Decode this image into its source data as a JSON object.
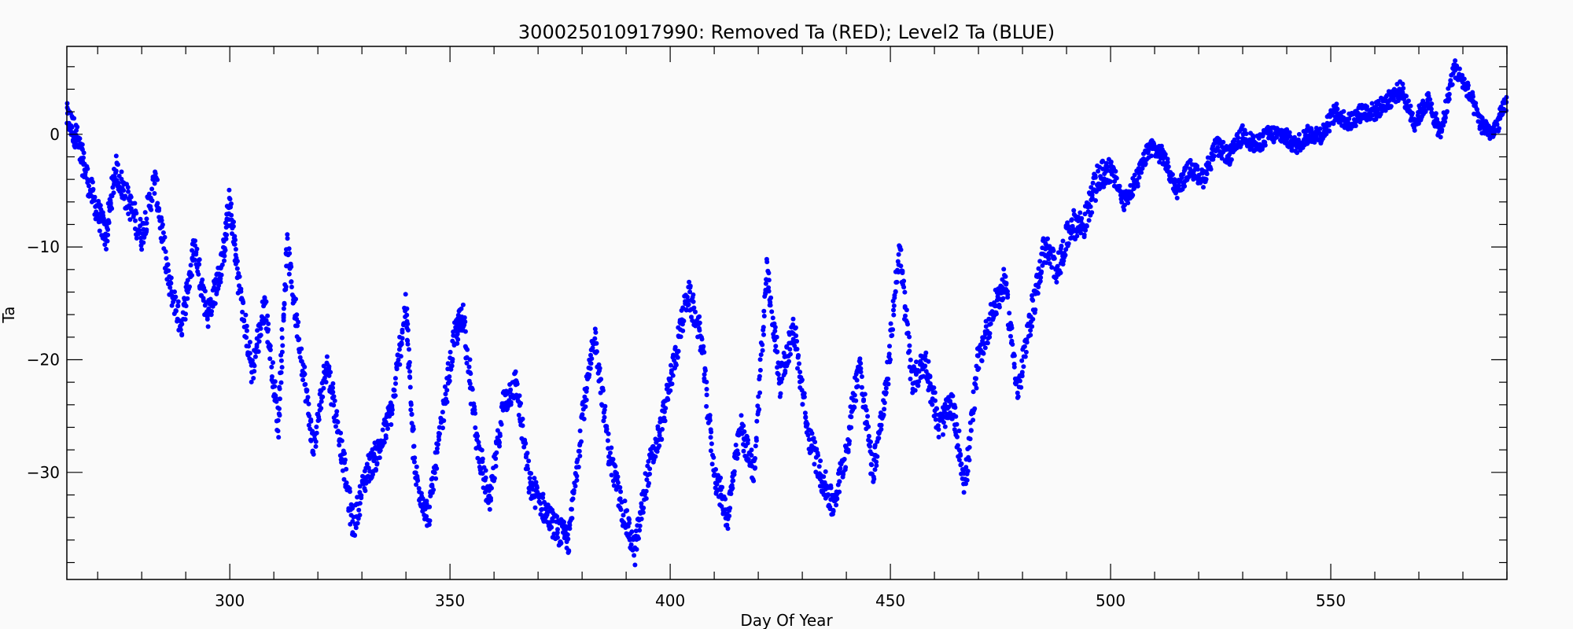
{
  "chart_data": {
    "type": "scatter",
    "title": "300025010917990: Removed Ta (RED); Level2 Ta (BLUE)",
    "xlabel": "Day Of Year",
    "ylabel": "Ta",
    "xlim": [
      263,
      590
    ],
    "ylim": [
      -39.5,
      7.8
    ],
    "x_ticks": [
      300,
      350,
      400,
      450,
      500,
      550
    ],
    "x_tick_labels": [
      "300",
      "350",
      "400",
      "450",
      "500",
      "550"
    ],
    "y_ticks": [
      0,
      -10,
      -20,
      -30
    ],
    "y_tick_labels": [
      "0",
      "−10",
      "−20",
      "−30"
    ],
    "grid": false,
    "series": [
      {
        "color": "#0000ff",
        "trend": [
          [
            263,
            1.5
          ],
          [
            265,
            0
          ],
          [
            267,
            -3
          ],
          [
            270,
            -7
          ],
          [
            272,
            -9
          ],
          [
            274,
            -3
          ],
          [
            277,
            -6
          ],
          [
            280,
            -9
          ],
          [
            283,
            -4
          ],
          [
            286,
            -13
          ],
          [
            289,
            -17
          ],
          [
            292,
            -10
          ],
          [
            295,
            -16
          ],
          [
            298,
            -12
          ],
          [
            300,
            -6
          ],
          [
            302,
            -13
          ],
          [
            305,
            -21
          ],
          [
            308,
            -15
          ],
          [
            311,
            -26
          ],
          [
            313,
            -10
          ],
          [
            316,
            -19
          ],
          [
            319,
            -28
          ],
          [
            322,
            -20
          ],
          [
            325,
            -27
          ],
          [
            328,
            -35
          ],
          [
            331,
            -30
          ],
          [
            334,
            -28
          ],
          [
            337,
            -24
          ],
          [
            340,
            -15
          ],
          [
            342,
            -30
          ],
          [
            345,
            -34
          ],
          [
            348,
            -26
          ],
          [
            351,
            -18
          ],
          [
            353,
            -16
          ],
          [
            356,
            -27
          ],
          [
            359,
            -33
          ],
          [
            362,
            -24
          ],
          [
            365,
            -22
          ],
          [
            368,
            -31
          ],
          [
            371,
            -33
          ],
          [
            374,
            -35
          ],
          [
            377,
            -36
          ],
          [
            380,
            -25
          ],
          [
            383,
            -18
          ],
          [
            386,
            -28
          ],
          [
            389,
            -33
          ],
          [
            392,
            -37
          ],
          [
            395,
            -30
          ],
          [
            398,
            -26
          ],
          [
            401,
            -20
          ],
          [
            404,
            -14
          ],
          [
            407,
            -18
          ],
          [
            410,
            -30
          ],
          [
            413,
            -34
          ],
          [
            416,
            -26
          ],
          [
            419,
            -30
          ],
          [
            422,
            -12
          ],
          [
            425,
            -22
          ],
          [
            428,
            -17
          ],
          [
            431,
            -26
          ],
          [
            434,
            -30
          ],
          [
            437,
            -33
          ],
          [
            440,
            -28
          ],
          [
            443,
            -20
          ],
          [
            446,
            -30
          ],
          [
            449,
            -23
          ],
          [
            452,
            -10
          ],
          [
            455,
            -22
          ],
          [
            458,
            -20
          ],
          [
            461,
            -26
          ],
          [
            464,
            -24
          ],
          [
            467,
            -31
          ],
          [
            470,
            -20
          ],
          [
            473,
            -16
          ],
          [
            476,
            -13
          ],
          [
            479,
            -23
          ],
          [
            482,
            -16
          ],
          [
            485,
            -10
          ],
          [
            488,
            -12
          ],
          [
            491,
            -8
          ],
          [
            494,
            -8
          ],
          [
            497,
            -4
          ],
          [
            500,
            -3
          ],
          [
            503,
            -6
          ],
          [
            506,
            -4
          ],
          [
            509,
            -1
          ],
          [
            512,
            -2
          ],
          [
            515,
            -5
          ],
          [
            518,
            -3
          ],
          [
            521,
            -4
          ],
          [
            524,
            -1
          ],
          [
            527,
            -2
          ],
          [
            530,
            0
          ],
          [
            533,
            -1
          ],
          [
            536,
            0
          ],
          [
            539,
            0
          ],
          [
            542,
            -1
          ],
          [
            545,
            0
          ],
          [
            548,
            0
          ],
          [
            551,
            2
          ],
          [
            554,
            1
          ],
          [
            557,
            2
          ],
          [
            560,
            2
          ],
          [
            563,
            3
          ],
          [
            566,
            4
          ],
          [
            569,
            1
          ],
          [
            572,
            3
          ],
          [
            575,
            0
          ],
          [
            578,
            6
          ],
          [
            581,
            4
          ],
          [
            584,
            1
          ],
          [
            587,
            0
          ],
          [
            590,
            3
          ]
        ]
      }
    ]
  }
}
